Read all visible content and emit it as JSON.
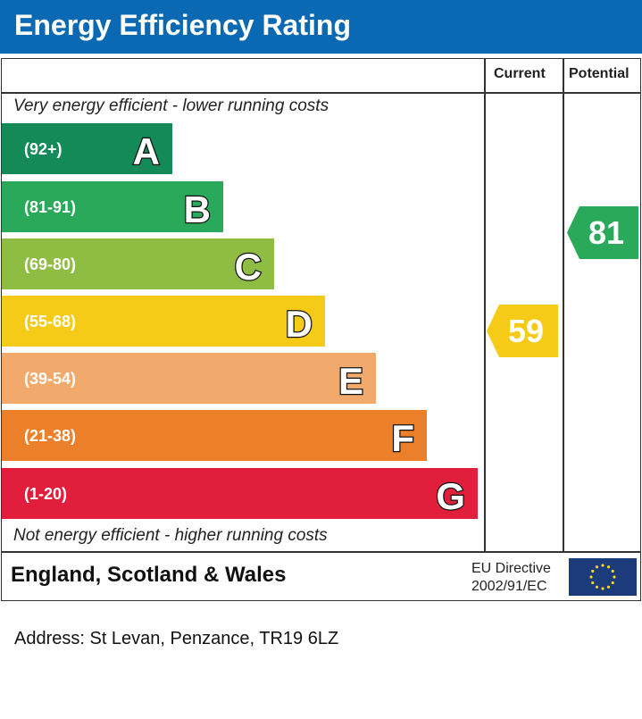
{
  "title": "Energy Efficiency Rating",
  "chart_data": {
    "type": "bar",
    "columns": [
      "Current",
      "Potential"
    ],
    "top_note": "Very energy efficient - lower running costs",
    "bottom_note": "Not energy efficient - higher running costs",
    "bands": [
      {
        "letter": "A",
        "range": "(92+)",
        "color": "#138a58"
      },
      {
        "letter": "B",
        "range": "(81-91)",
        "color": "#2ba95a"
      },
      {
        "letter": "C",
        "range": "(69-80)",
        "color": "#8fbd44"
      },
      {
        "letter": "D",
        "range": "(55-68)",
        "color": "#f5cb18"
      },
      {
        "letter": "E",
        "range": "(39-54)",
        "color": "#f2aa6c"
      },
      {
        "letter": "F",
        "range": "(21-38)",
        "color": "#ec7f29"
      },
      {
        "letter": "G",
        "range": "(1-20)",
        "color": "#e11f3c"
      }
    ],
    "current": {
      "value": 59,
      "band": "D",
      "color": "#f5cb18"
    },
    "potential": {
      "value": 81,
      "band": "B",
      "color": "#2ba95a"
    }
  },
  "footer": {
    "country": "England, Scotland & Wales",
    "directive_line1": "EU Directive",
    "directive_line2": "2002/91/EC"
  },
  "address": "Address: St Levan, Penzance, TR19 6LZ",
  "header_color": "#0b69b3"
}
